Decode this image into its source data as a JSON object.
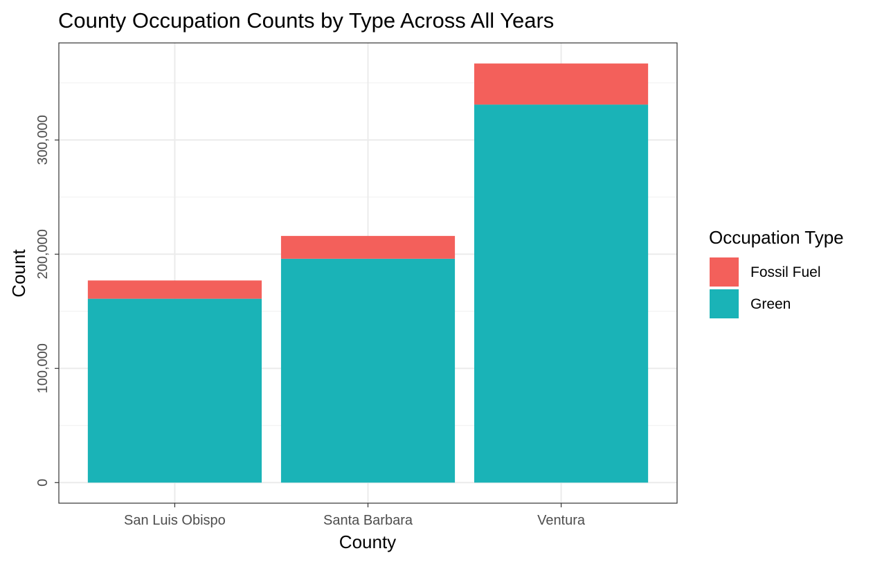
{
  "chart_data": {
    "type": "bar",
    "stacked": true,
    "title": "County Occupation Counts by Type Across All Years",
    "xlabel": "County",
    "ylabel": "Count",
    "categories": [
      "San Luis Obispo",
      "Santa Barbara",
      "Ventura"
    ],
    "series": [
      {
        "name": "Green",
        "color": "#1ab3b7",
        "values": [
          161000,
          196000,
          331000
        ]
      },
      {
        "name": "Fossil Fuel",
        "color": "#f3605b",
        "values": [
          16000,
          20000,
          36000
        ]
      }
    ],
    "ylim": [
      -18000,
      385000
    ],
    "yticks": [
      0,
      100000,
      200000,
      300000
    ],
    "ytick_labels": [
      "0",
      "100,000",
      "200,000",
      "300,000"
    ],
    "grid": true,
    "legend": {
      "title": "Occupation Type",
      "position": "right",
      "entries": [
        {
          "label": "Fossil Fuel",
          "color": "#f3605b"
        },
        {
          "label": "Green",
          "color": "#1ab3b7"
        }
      ]
    }
  }
}
